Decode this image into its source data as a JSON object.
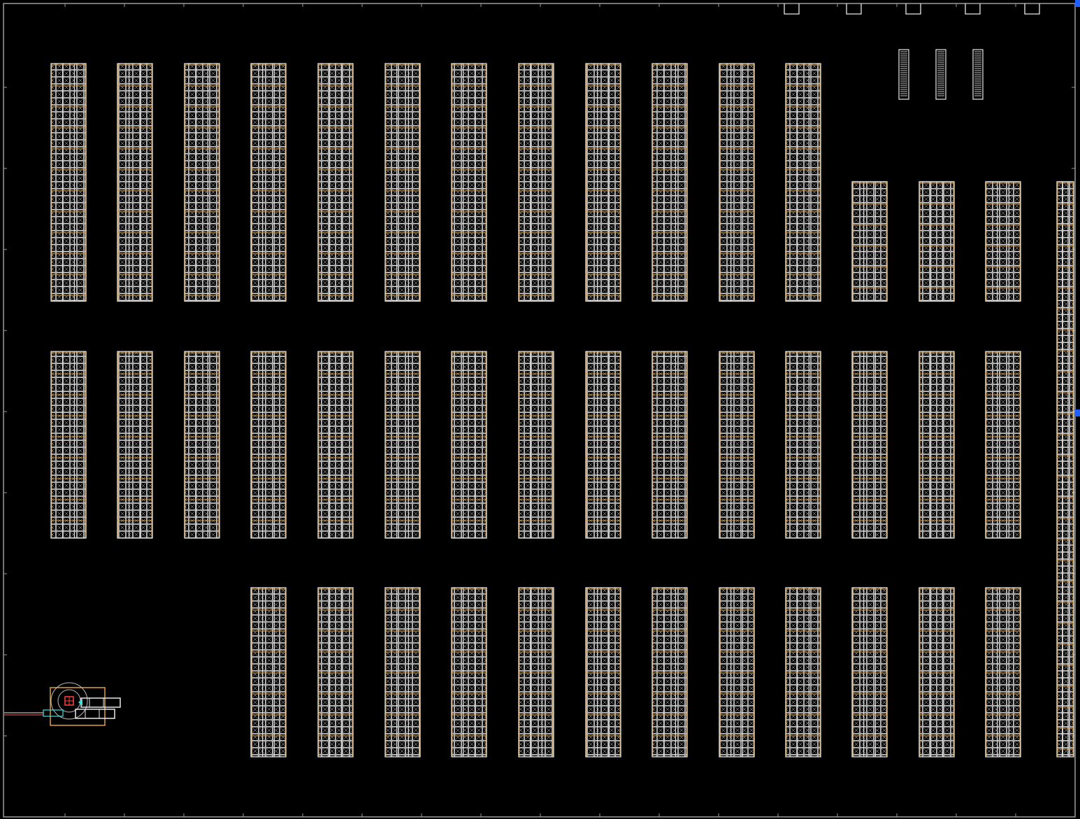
{
  "drawing": {
    "background": "#000000",
    "frame_color": "#9a9a9a",
    "rack_outline_color": "#e8e8e8",
    "rack_cell_color": "#d8d8d8",
    "beam_color": "#e0a040",
    "equipment_accent_color": "#e0a040",
    "equipment_cyan_color": "#40e0e0",
    "equipment_red_color": "#ff4040",
    "grip_color": "#2060ff"
  },
  "layout_summary": {
    "rack_bay_count": 43,
    "rows": [
      {
        "name": "top-row",
        "bay_count": 15
      },
      {
        "name": "middle-row",
        "bay_count": 15
      },
      {
        "name": "bottom-row",
        "bay_count": 12
      },
      {
        "name": "right-edge-column",
        "bay_count": 1
      }
    ],
    "dock_door_count": 5,
    "barcode_station_count": 3,
    "equipment_count": 1
  },
  "icons": {
    "rack": "rack-bay-icon",
    "door": "dock-door-icon",
    "station": "barcode-station-icon",
    "equipment": "forklift-equipment-icon",
    "grip": "selection-grip-icon"
  }
}
